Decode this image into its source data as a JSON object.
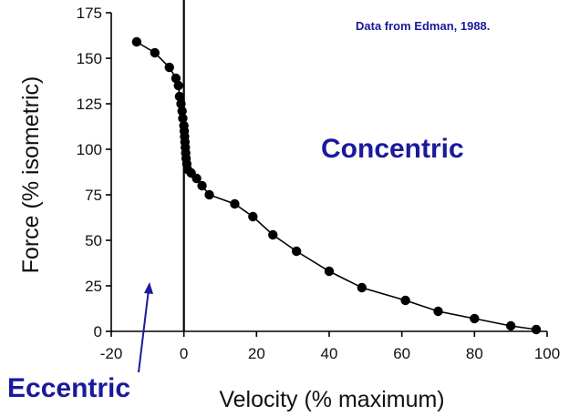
{
  "chart_data": {
    "type": "line",
    "title": "",
    "xlabel": "Velocity (% maximum)",
    "ylabel": "Force (% isometric)",
    "xlim": [
      -20,
      100
    ],
    "ylim": [
      0,
      175
    ],
    "xticks": [
      "-20",
      "0",
      "20",
      "40",
      "60",
      "80",
      "100"
    ],
    "yticks": [
      "0",
      "25",
      "50",
      "75",
      "100",
      "125",
      "150",
      "175"
    ],
    "grid": false,
    "legend": "none",
    "annotations": {
      "source": "Data from Edman, 1988.",
      "concentric": "Concentric",
      "eccentric": "Eccentric"
    },
    "colors": {
      "annotation": "#1a1a9c",
      "series": "#000000"
    },
    "series": [
      {
        "points": [
          [
            -13,
            159
          ],
          [
            -8,
            153
          ],
          [
            -4,
            145
          ],
          [
            -2.2,
            139
          ],
          [
            -1.5,
            135
          ],
          [
            -1.2,
            129
          ],
          [
            -0.8,
            125
          ],
          [
            -0.5,
            121
          ],
          [
            -0.3,
            117
          ],
          [
            0,
            113
          ],
          [
            0.1,
            110
          ],
          [
            0.2,
            107
          ],
          [
            0.3,
            104
          ],
          [
            0.4,
            101
          ],
          [
            0.5,
            98
          ],
          [
            0.6,
            95
          ],
          [
            0.8,
            92
          ],
          [
            1,
            89
          ],
          [
            2,
            87
          ],
          [
            3.5,
            84
          ],
          [
            5,
            80
          ],
          [
            7,
            75
          ],
          [
            14,
            70
          ],
          [
            19,
            63
          ],
          [
            24.5,
            53
          ],
          [
            31,
            44
          ],
          [
            40,
            33
          ],
          [
            49,
            24
          ],
          [
            61,
            17
          ],
          [
            70,
            11
          ],
          [
            80,
            7
          ],
          [
            90,
            3
          ],
          [
            97,
            1
          ]
        ]
      }
    ]
  }
}
